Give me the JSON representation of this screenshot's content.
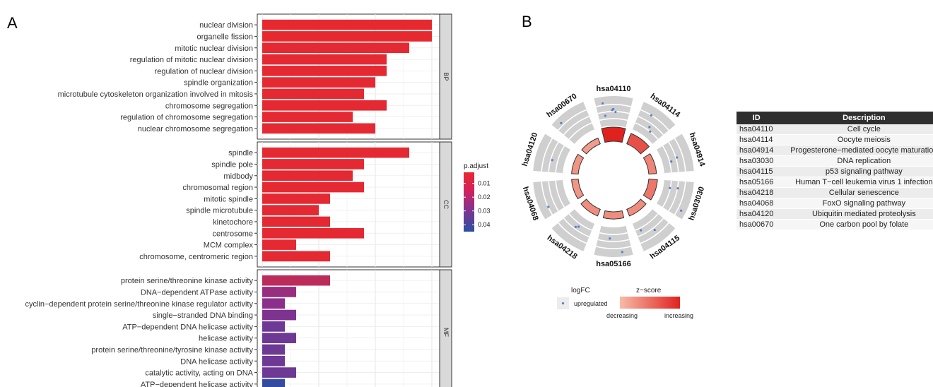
{
  "panel_labels": [
    "A",
    "B"
  ],
  "chart_data": [
    {
      "type": "bar",
      "orientation": "horizontal",
      "xlim": [
        0,
        16
      ],
      "xticks": [
        0,
        5,
        10,
        15
      ],
      "grid": true,
      "legend": {
        "title": "p.adjust",
        "ticks": [
          "0.01",
          "0.02",
          "0.03",
          "0.04"
        ],
        "range": [
          0.002,
          0.045
        ],
        "placement": "right"
      },
      "color_scale": {
        "low_color": "#e8292d",
        "high_color": "#2b4fa2"
      },
      "facets": [
        {
          "name": "BP",
          "categories": [
            {
              "label": "nuclear division",
              "value": 15,
              "p_adjust": 0.0025
            },
            {
              "label": "organelle fission",
              "value": 15,
              "p_adjust": 0.0025
            },
            {
              "label": "mitotic nuclear division",
              "value": 13,
              "p_adjust": 0.003
            },
            {
              "label": "regulation of mitotic nuclear division",
              "value": 11,
              "p_adjust": 0.003
            },
            {
              "label": "regulation of nuclear division",
              "value": 11,
              "p_adjust": 0.003
            },
            {
              "label": "spindle organization",
              "value": 10,
              "p_adjust": 0.003
            },
            {
              "label": "microtubule cytoskeleton organization involved in mitosis",
              "value": 9,
              "p_adjust": 0.003
            },
            {
              "label": "chromosome segregation",
              "value": 11,
              "p_adjust": 0.003
            },
            {
              "label": "regulation of chromosome segregation",
              "value": 8,
              "p_adjust": 0.003
            },
            {
              "label": "nuclear chromosome segregation",
              "value": 10,
              "p_adjust": 0.003
            }
          ]
        },
        {
          "name": "CC",
          "categories": [
            {
              "label": "spindle",
              "value": 13,
              "p_adjust": 0.003
            },
            {
              "label": "spindle pole",
              "value": 9,
              "p_adjust": 0.003
            },
            {
              "label": "midbody",
              "value": 8,
              "p_adjust": 0.003
            },
            {
              "label": "chromosomal region",
              "value": 9,
              "p_adjust": 0.003
            },
            {
              "label": "mitotic spindle",
              "value": 6,
              "p_adjust": 0.003
            },
            {
              "label": "spindle microtubule",
              "value": 5,
              "p_adjust": 0.003
            },
            {
              "label": "kinetochore",
              "value": 6,
              "p_adjust": 0.003
            },
            {
              "label": "centrosome",
              "value": 9,
              "p_adjust": 0.003
            },
            {
              "label": "MCM complex",
              "value": 3,
              "p_adjust": 0.003
            },
            {
              "label": "chromosome, centromeric region",
              "value": 6,
              "p_adjust": 0.003
            }
          ]
        },
        {
          "name": "MF",
          "categories": [
            {
              "label": "protein serine/threonine kinase activity",
              "value": 6,
              "p_adjust": 0.012
            },
            {
              "label": "DNA−dependent ATPase activity",
              "value": 3,
              "p_adjust": 0.02
            },
            {
              "label": "cyclin−dependent protein serine/threonine kinase regulator activity",
              "value": 2,
              "p_adjust": 0.023
            },
            {
              "label": "single−stranded DNA binding",
              "value": 3,
              "p_adjust": 0.026
            },
            {
              "label": "ATP−dependent DNA helicase activity",
              "value": 2,
              "p_adjust": 0.03
            },
            {
              "label": "helicase activity",
              "value": 3,
              "p_adjust": 0.03
            },
            {
              "label": "protein serine/threonine/tyrosine kinase activity",
              "value": 2,
              "p_adjust": 0.03
            },
            {
              "label": "DNA helicase activity",
              "value": 2,
              "p_adjust": 0.03
            },
            {
              "label": "catalytic activity, acting on DNA",
              "value": 3,
              "p_adjust": 0.03
            },
            {
              "label": "ATP−dependent helicase activity",
              "value": 2,
              "p_adjust": 0.043
            }
          ]
        }
      ]
    },
    {
      "type": "circular",
      "sectors": [
        {
          "id": "hsa04110",
          "zscore": 1.0,
          "points": 5
        },
        {
          "id": "hsa04114",
          "zscore": 0.7,
          "points": 3
        },
        {
          "id": "hsa04914",
          "zscore": 0.35,
          "points": 2
        },
        {
          "id": "hsa03030",
          "zscore": 0.45,
          "points": 3
        },
        {
          "id": "hsa04115",
          "zscore": 0.3,
          "points": 2
        },
        {
          "id": "hsa05166",
          "zscore": 0.3,
          "points": 2
        },
        {
          "id": "hsa04218",
          "zscore": 0.3,
          "points": 2
        },
        {
          "id": "hsa04068",
          "zscore": 0.25,
          "points": 1
        },
        {
          "id": "hsa04120",
          "zscore": 0.25,
          "points": 1
        },
        {
          "id": "hsa00670",
          "zscore": 0.2,
          "points": 1
        }
      ],
      "legend": {
        "logfc_title": "logFC",
        "logfc_item": "upregulated",
        "zscore_title": "z−score",
        "zscore_low": "decreasing",
        "zscore_high": "increasing"
      }
    }
  ],
  "table": {
    "headers": {
      "id": "ID",
      "description": "Description"
    },
    "rows": [
      {
        "id": "hsa04110",
        "description": "Cell cycle"
      },
      {
        "id": "hsa04114",
        "description": "Oocyte meiosis"
      },
      {
        "id": "hsa04914",
        "description": "Progesterone−mediated oocyte maturation"
      },
      {
        "id": "hsa03030",
        "description": "DNA replication"
      },
      {
        "id": "hsa04115",
        "description": "p53 signaling pathway"
      },
      {
        "id": "hsa05166",
        "description": "Human T−cell leukemia virus 1 infection"
      },
      {
        "id": "hsa04218",
        "description": "Cellular senescence"
      },
      {
        "id": "hsa04068",
        "description": "FoxO signaling pathway"
      },
      {
        "id": "hsa04120",
        "description": "Ubiquitin mediated proteolysis"
      },
      {
        "id": "hsa00670",
        "description": "One carbon pool by folate"
      }
    ]
  }
}
